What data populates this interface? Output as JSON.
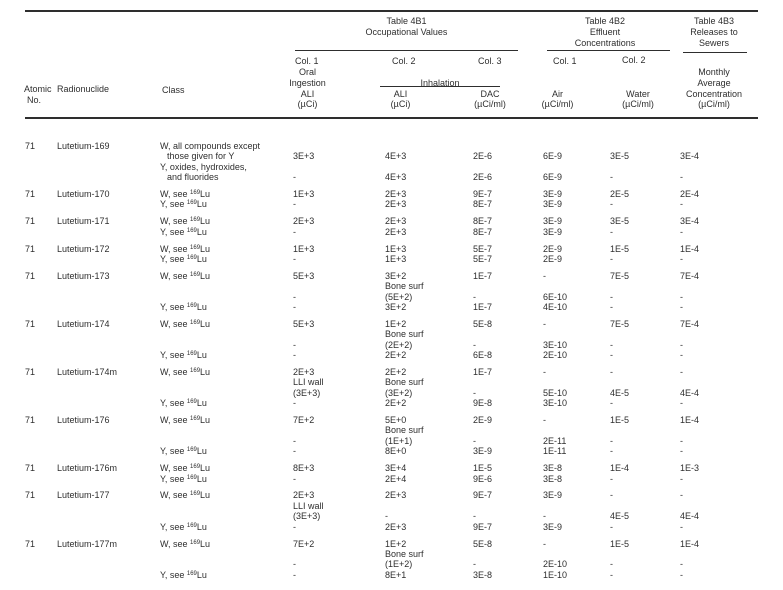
{
  "table_headers": {
    "group1": {
      "line1": "Table 4B1",
      "line2": "Occupational Values"
    },
    "group2": {
      "line1": "Table 4B2",
      "line2": "Effluent",
      "line3": "Concentrations"
    },
    "group3": {
      "line1": "Table 4B3",
      "line2": "Releases to",
      "line3": "Sewers"
    },
    "atomic": {
      "line1": "Atomic",
      "line2": "No."
    },
    "radionuclide_label": "Radionuclide",
    "class_label": "Class",
    "oral": {
      "col": "Col. 1",
      "line1": "Oral",
      "line2": "Ingestion",
      "line3": "ALI",
      "line4": "(µCi)"
    },
    "inhalation": {
      "col2": "Col. 2",
      "col3": "Col. 3",
      "label": "Inhalation",
      "ali_line1": "ALI",
      "ali_line2": "(µCi)",
      "dac_line1": "DAC",
      "dac_line2": "(µCi/ml)"
    },
    "air": {
      "col": "Col. 1",
      "line1": "Air",
      "line2": "(µCi/ml)"
    },
    "water": {
      "col": "Col. 2",
      "line1": "Water",
      "line2": "(µCi/ml)"
    },
    "sewer": {
      "line1": "Monthly",
      "line2": "Average",
      "line3": "Concentration",
      "line4": "(µCi/ml)"
    }
  },
  "blocks": [
    {
      "lines": [
        {
          "atomic": "71",
          "nuclide": "Lutetium-169",
          "class": "W, all compounds except"
        },
        {
          "class": "those given for Y",
          "class_indent": true,
          "oral": "3E+3",
          "inh": "4E+3",
          "dac": "2E-6",
          "air": "6E-9",
          "water": "3E-5",
          "sewer": "3E-4"
        },
        {
          "class": "Y, oxides, hydroxides,"
        },
        {
          "class": "and fluorides",
          "class_indent": true,
          "oral": "-",
          "inh": "4E+3",
          "dac": "2E-6",
          "air": "6E-9",
          "water": "-",
          "sewer": "-"
        }
      ]
    },
    {
      "lines": [
        {
          "atomic": "71",
          "nuclide": "Lutetium-170",
          "class_parts": [
            "W, see ",
            "169",
            "Lu"
          ],
          "oral": "1E+3",
          "inh": "2E+3",
          "dac": "9E-7",
          "air": "3E-9",
          "water": "2E-5",
          "sewer": "2E-4"
        },
        {
          "class_parts": [
            "Y, see ",
            "169",
            "Lu"
          ],
          "oral": "-",
          "inh": "2E+3",
          "dac": "8E-7",
          "air": "3E-9",
          "water": "-",
          "sewer": "-"
        }
      ]
    },
    {
      "lines": [
        {
          "atomic": "71",
          "nuclide": "Lutetium-171",
          "class_parts": [
            "W, see ",
            "169",
            "Lu"
          ],
          "oral": "2E+3",
          "inh": "2E+3",
          "dac": "8E-7",
          "air": "3E-9",
          "water": "3E-5",
          "sewer": "3E-4"
        },
        {
          "class_parts": [
            "Y, see ",
            "169",
            "Lu"
          ],
          "oral": "-",
          "inh": "2E+3",
          "dac": "8E-7",
          "air": "3E-9",
          "water": "-",
          "sewer": "-"
        }
      ]
    },
    {
      "lines": [
        {
          "atomic": "71",
          "nuclide": "Lutetium-172",
          "class_parts": [
            "W, see ",
            "169",
            "Lu"
          ],
          "oral": "1E+3",
          "inh": "1E+3",
          "dac": "5E-7",
          "air": "2E-9",
          "water": "1E-5",
          "sewer": "1E-4"
        },
        {
          "class_parts": [
            "Y, see ",
            "169",
            "Lu"
          ],
          "oral": "-",
          "inh": "1E+3",
          "dac": "5E-7",
          "air": "2E-9",
          "water": "-",
          "sewer": "-"
        }
      ]
    },
    {
      "lines": [
        {
          "atomic": "71",
          "nuclide": "Lutetium-173",
          "class_parts": [
            "W, see ",
            "169",
            "Lu"
          ],
          "oral": "5E+3",
          "inh": "3E+2",
          "dac": "1E-7",
          "air": "-",
          "water": "7E-5",
          "sewer": "7E-4"
        },
        {
          "inh": "Bone surf"
        },
        {
          "oral": "-",
          "inh": "(5E+2)",
          "dac": "-",
          "air": "6E-10",
          "water": "-",
          "sewer": "-"
        },
        {
          "class_parts": [
            "Y, see ",
            "169",
            "Lu"
          ],
          "oral": "-",
          "inh": "3E+2",
          "dac": "1E-7",
          "air": "4E-10",
          "water": "-",
          "sewer": "-"
        }
      ]
    },
    {
      "lines": [
        {
          "atomic": "71",
          "nuclide": "Lutetium-174",
          "class_parts": [
            "W, see ",
            "169",
            "Lu"
          ],
          "oral": "5E+3",
          "inh": "1E+2",
          "dac": "5E-8",
          "air": "-",
          "water": "7E-5",
          "sewer": "7E-4"
        },
        {
          "inh": "Bone surf"
        },
        {
          "oral": "-",
          "inh": "(2E+2)",
          "dac": "-",
          "air": "3E-10",
          "water": "-",
          "sewer": "-"
        },
        {
          "class_parts": [
            "Y, see ",
            "169",
            "Lu"
          ],
          "oral": "-",
          "inh": "2E+2",
          "dac": "6E-8",
          "air": "2E-10",
          "water": "-",
          "sewer": "-"
        }
      ]
    },
    {
      "lines": [
        {
          "atomic": "71",
          "nuclide": "Lutetium-174m",
          "class_parts": [
            "W, see ",
            "169",
            "Lu"
          ],
          "oral": "2E+3",
          "inh": "2E+2",
          "dac": "1E-7",
          "air": "-",
          "water": "-",
          "sewer": "-"
        },
        {
          "oral": "LLI wall",
          "inh": "Bone surf"
        },
        {
          "oral": "(3E+3)",
          "inh": "(3E+2)",
          "dac": "-",
          "air": "5E-10",
          "water": "4E-5",
          "sewer": "4E-4"
        },
        {
          "class_parts": [
            "Y, see ",
            "169",
            "Lu"
          ],
          "oral": "-",
          "inh": "2E+2",
          "dac": "9E-8",
          "air": "3E-10",
          "water": "-",
          "sewer": "-"
        }
      ]
    },
    {
      "lines": [
        {
          "atomic": "71",
          "nuclide": "Lutetium-176",
          "class_parts": [
            "W, see ",
            "169",
            "Lu"
          ],
          "oral": "7E+2",
          "inh": "5E+0",
          "dac": "2E-9",
          "air": "-",
          "water": "1E-5",
          "sewer": "1E-4"
        },
        {
          "inh": "Bone surf"
        },
        {
          "oral": "-",
          "inh": "(1E+1)",
          "dac": "-",
          "air": "2E-11",
          "water": "-",
          "sewer": "-"
        },
        {
          "class_parts": [
            "Y, see ",
            "169",
            "Lu"
          ],
          "oral": "-",
          "inh": "8E+0",
          "dac": "3E-9",
          "air": "1E-11",
          "water": "-",
          "sewer": "-"
        }
      ]
    },
    {
      "lines": [
        {
          "atomic": "71",
          "nuclide": "Lutetium-176m",
          "class_parts": [
            "W, see ",
            "169",
            "Lu"
          ],
          "oral": "8E+3",
          "inh": "3E+4",
          "dac": "1E-5",
          "air": "3E-8",
          "water": "1E-4",
          "sewer": "1E-3"
        },
        {
          "class_parts": [
            "Y, see ",
            "169",
            "Lu"
          ],
          "oral": "-",
          "inh": "2E+4",
          "dac": "9E-6",
          "air": "3E-8",
          "water": "-",
          "sewer": "-"
        }
      ]
    },
    {
      "lines": [
        {
          "atomic": "71",
          "nuclide": "Lutetium-177",
          "class_parts": [
            "W, see ",
            "169",
            "Lu"
          ],
          "oral": "2E+3",
          "inh": "2E+3",
          "dac": "9E-7",
          "air": "3E-9",
          "water": "-",
          "sewer": "-"
        },
        {
          "oral": "LLI wall"
        },
        {
          "oral": "(3E+3)",
          "inh": "-",
          "dac": "-",
          "air": "-",
          "water": "4E-5",
          "sewer": "4E-4"
        },
        {
          "class_parts": [
            "Y, see ",
            "169",
            "Lu"
          ],
          "oral": "-",
          "inh": "2E+3",
          "dac": "9E-7",
          "air": "3E-9",
          "water": "-",
          "sewer": "-"
        }
      ]
    },
    {
      "lines": [
        {
          "atomic": "71",
          "nuclide": "Lutetium-177m",
          "class_parts": [
            "W, see ",
            "169",
            "Lu"
          ],
          "oral": "7E+2",
          "inh": "1E+2",
          "dac": "5E-8",
          "air": "-",
          "water": "1E-5",
          "sewer": "1E-4"
        },
        {
          "inh": "Bone surf"
        },
        {
          "oral": "-",
          "inh": "(1E+2)",
          "dac": "-",
          "air": "2E-10",
          "water": "-",
          "sewer": "-"
        },
        {
          "class_parts": [
            "Y, see ",
            "169",
            "Lu"
          ],
          "oral": "-",
          "inh": "8E+1",
          "dac": "3E-8",
          "air": "1E-10",
          "water": "-",
          "sewer": "-"
        }
      ]
    }
  ]
}
